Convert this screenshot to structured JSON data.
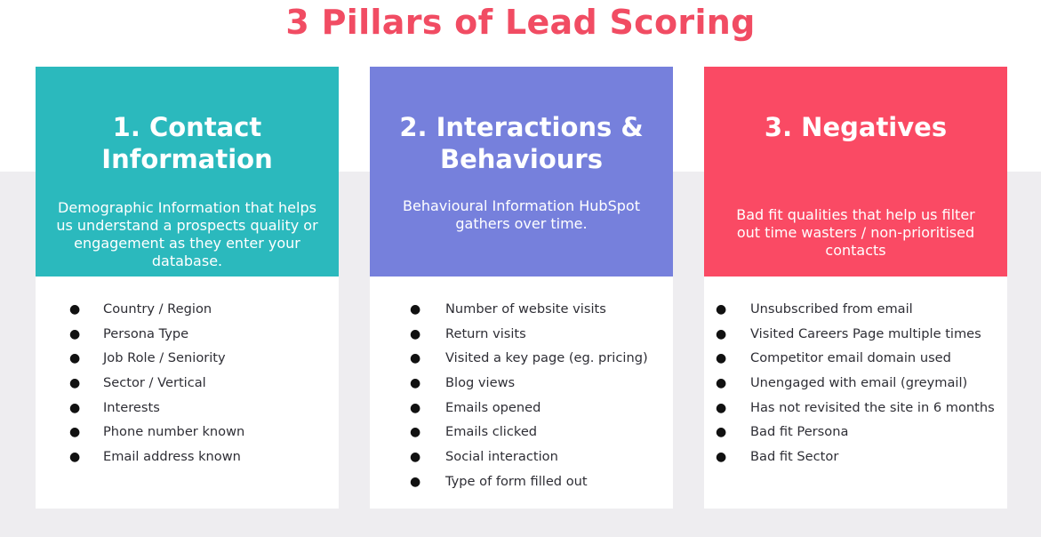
{
  "title": "3 Pillars of Lead Scoring",
  "colors": {
    "title": "#f14c63",
    "card_1": "#2bb9bd",
    "card_2": "#7680dc",
    "card_3": "#fa4a64",
    "background_band": "#eeedf0"
  },
  "cards": [
    {
      "heading": "1. Contact Information",
      "description": "Demographic Information that helps us understand a prospects quality or engagement as they enter your database.",
      "items": [
        "Country / Region",
        "Persona Type",
        "Job Role / Seniority",
        "Sector / Vertical",
        "Interests",
        "Phone number known",
        "Email address known"
      ]
    },
    {
      "heading": "2. Interactions & Behaviours",
      "description": "Behavioural Information HubSpot gathers over time.",
      "items": [
        "Number of website visits",
        "Return visits",
        "Visited a key page (eg. pricing)",
        "Blog views",
        "Emails opened",
        "Emails clicked",
        "Social interaction",
        "Type of form filled out"
      ]
    },
    {
      "heading": "3. Negatives",
      "description": "Bad fit qualities that help us filter out time wasters / non-prioritised contacts",
      "items": [
        "Unsubscribed from email",
        "Visited Careers Page multiple times",
        "Competitor email domain used",
        "Unengaged with email (greymail)",
        "Has not revisited the site in 6 months",
        "Bad fit Persona",
        "Bad fit Sector"
      ]
    }
  ]
}
